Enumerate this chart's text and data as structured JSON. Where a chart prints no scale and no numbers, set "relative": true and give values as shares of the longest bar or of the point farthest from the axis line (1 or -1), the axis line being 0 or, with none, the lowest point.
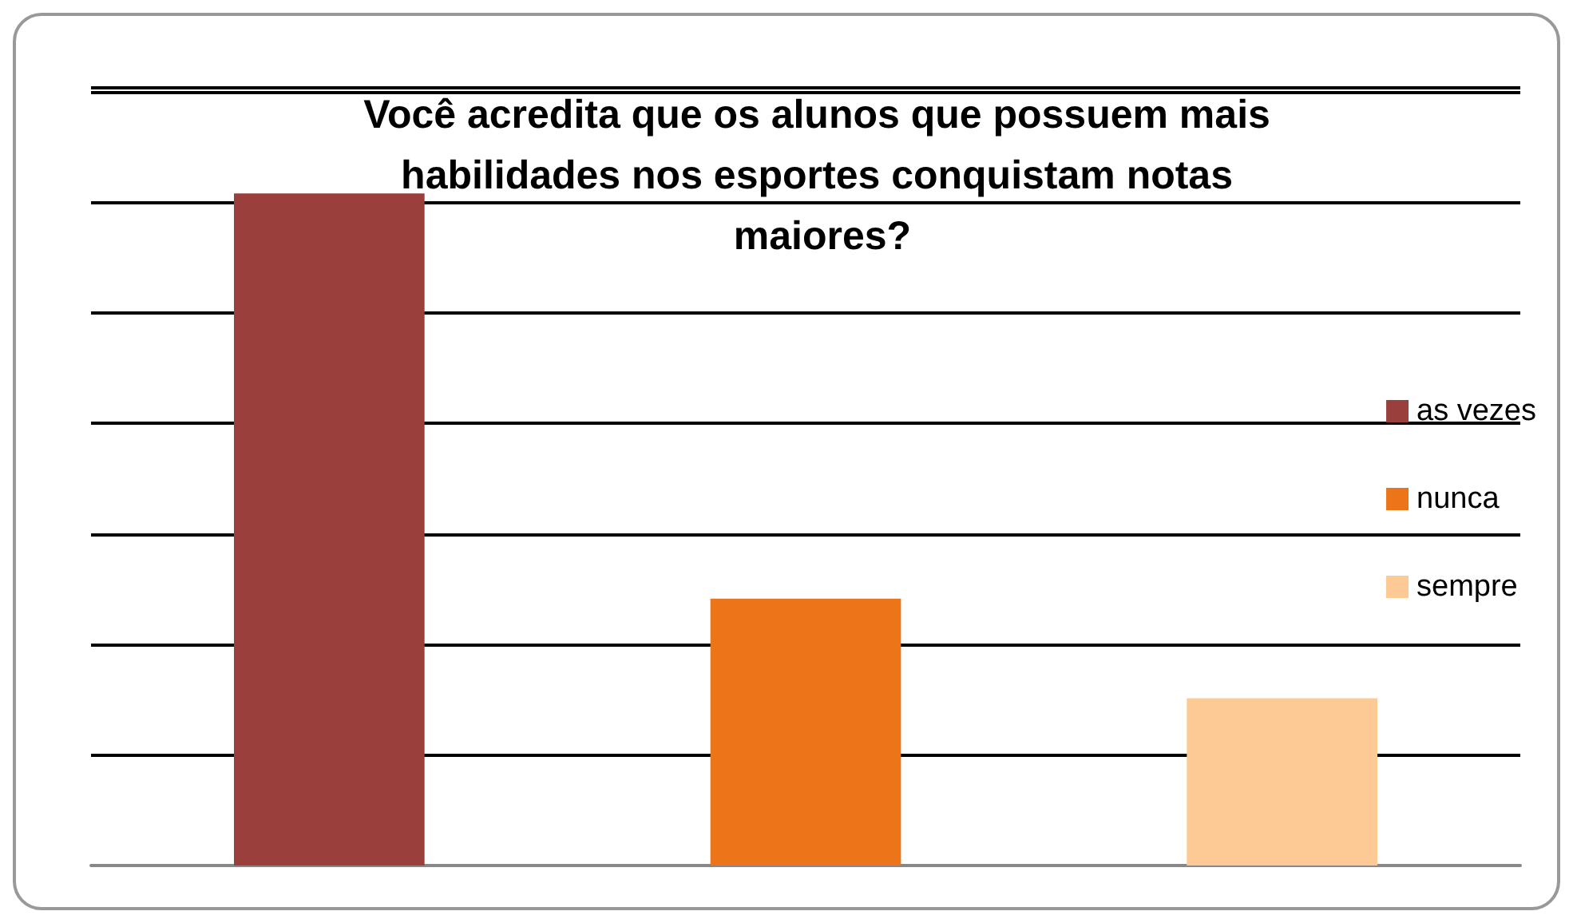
{
  "chart_data": {
    "type": "bar",
    "title": "Você acredita que os alunos que possuem mais habilidades nos esportes conquistam notas maiores?",
    "categories": [
      null,
      null,
      null
    ],
    "relative": true,
    "grid": "y",
    "legend": "right",
    "stacked": true,
    "series": [
      {
        "name": "as vezes",
        "color": "#9b3f3c",
        "values": [
          1,
          null,
          null
        ]
      },
      {
        "name": "nunca",
        "color": "#ed7519",
        "values": [
          null,
          0.397,
          null
        ]
      },
      {
        "name": "sempre",
        "color": "#fdc994",
        "values": [
          null,
          null,
          0.249
        ]
      }
    ]
  }
}
